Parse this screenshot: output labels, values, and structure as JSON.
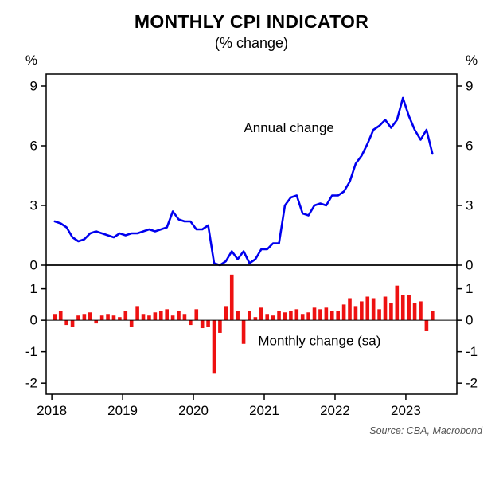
{
  "title": "MONTHLY CPI INDICATOR",
  "subtitle": "(% change)",
  "source": "Source: CBA, Macrobond",
  "chart_data": {
    "type": "combo",
    "title": "MONTHLY CPI INDICATOR",
    "subtitle": "(% change)",
    "x_unit": "month",
    "start": "2018-01",
    "start_year": 2018,
    "x_domain": [
      2017.92,
      2023.72
    ],
    "year_ticks": [
      2018,
      2019,
      2020,
      2021,
      2022,
      2023
    ],
    "grid": false,
    "panels": [
      {
        "name": "annual",
        "type": "line",
        "color": "#0000ee",
        "ylabel": "%",
        "y_domain": [
          0,
          9.6
        ],
        "y_ticks": [
          0,
          3,
          6,
          9
        ],
        "annotation": {
          "text": "Annual change",
          "x": 2021.35,
          "y": 6.9
        }
      },
      {
        "name": "monthly",
        "type": "bar",
        "color": "#ee1111",
        "ylabel": "%",
        "y_domain": [
          -2.35,
          1.75
        ],
        "y_ticks": [
          -2,
          -1,
          0,
          1
        ],
        "annotation": {
          "text": "Monthly change (sa)",
          "x": 2021.78,
          "y": -0.65
        }
      }
    ],
    "series": [
      {
        "name": "Annual change",
        "panel": "annual",
        "values": [
          2.2,
          2.1,
          1.9,
          1.4,
          1.2,
          1.3,
          1.6,
          1.7,
          1.6,
          1.5,
          1.4,
          1.6,
          1.5,
          1.6,
          1.6,
          1.7,
          1.8,
          1.7,
          1.8,
          1.9,
          2.7,
          2.3,
          2.2,
          2.2,
          1.8,
          1.8,
          2.0,
          0.1,
          0.0,
          0.2,
          0.7,
          0.3,
          0.7,
          0.1,
          0.3,
          0.8,
          0.8,
          1.1,
          1.1,
          3.0,
          3.4,
          3.5,
          2.6,
          2.5,
          3.0,
          3.1,
          3.0,
          3.5,
          3.5,
          3.7,
          4.2,
          5.1,
          5.5,
          6.1,
          6.8,
          7.0,
          7.3,
          6.9,
          7.3,
          8.4,
          7.5,
          6.8,
          6.3,
          6.8,
          5.6
        ]
      },
      {
        "name": "Monthly change (sa)",
        "panel": "monthly",
        "values": [
          0.2,
          0.3,
          -0.15,
          -0.2,
          0.15,
          0.2,
          0.25,
          -0.1,
          0.15,
          0.2,
          0.15,
          0.1,
          0.3,
          -0.2,
          0.45,
          0.2,
          0.15,
          0.25,
          0.3,
          0.35,
          0.15,
          0.3,
          0.2,
          -0.15,
          0.35,
          -0.25,
          -0.2,
          -1.7,
          -0.4,
          0.45,
          1.45,
          0.3,
          -0.75,
          0.3,
          0.1,
          0.4,
          0.2,
          0.15,
          0.3,
          0.25,
          0.3,
          0.35,
          0.2,
          0.25,
          0.4,
          0.35,
          0.4,
          0.3,
          0.3,
          0.5,
          0.7,
          0.45,
          0.6,
          0.75,
          0.7,
          0.35,
          0.75,
          0.55,
          1.1,
          0.8,
          0.8,
          0.55,
          0.6,
          -0.35,
          0.3
        ]
      }
    ]
  }
}
